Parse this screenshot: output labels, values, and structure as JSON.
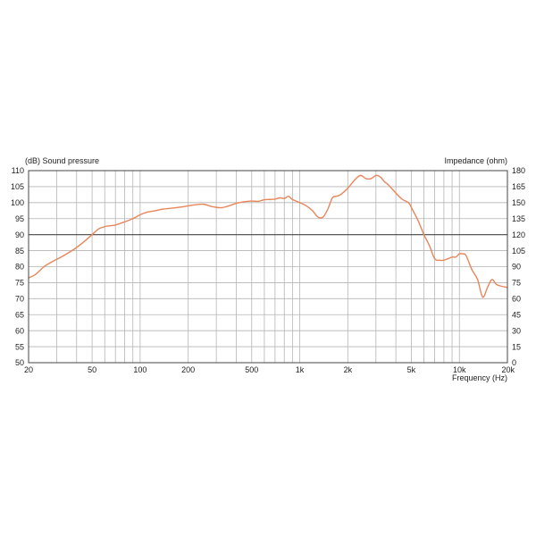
{
  "colors": {
    "curve": "#e8865a",
    "grid_minor": "#b5b5b5",
    "grid_major": "#444444",
    "frame": "#444444",
    "background": "#ffffff",
    "text": "#222222"
  },
  "chart_data": {
    "type": "line",
    "title": "",
    "xlabel": "Frequency  (Hz)",
    "ylabel_left": "(dB)  Sound pressure",
    "ylabel_right": "Impedance  (ohm)",
    "x_scale": "log",
    "xlim": [
      20,
      20000
    ],
    "ylim_left": [
      50,
      110
    ],
    "ylim_right": [
      0,
      180
    ],
    "grid": true,
    "reference_line_db": 90,
    "x_ticks": [
      {
        "value": 20,
        "label": "20"
      },
      {
        "value": 50,
        "label": "50"
      },
      {
        "value": 100,
        "label": "100"
      },
      {
        "value": 200,
        "label": "200"
      },
      {
        "value": 500,
        "label": "500"
      },
      {
        "value": 1000,
        "label": "1k"
      },
      {
        "value": 2000,
        "label": "2k"
      },
      {
        "value": 5000,
        "label": "5k"
      },
      {
        "value": 10000,
        "label": "10k"
      },
      {
        "value": 20000,
        "label": "20k"
      }
    ],
    "y_ticks_left": [
      "110",
      "105",
      "100",
      "95",
      "90",
      "85",
      "80",
      "75",
      "70",
      "65",
      "60",
      "55",
      "50"
    ],
    "y_ticks_right": [
      "180",
      "165",
      "150",
      "135",
      "120",
      "105",
      "90",
      "75",
      "60",
      "45",
      "30",
      "15",
      "0"
    ],
    "series": [
      {
        "type": "sound_pressure",
        "x": [
          20,
          22,
          25,
          28,
          32,
          36,
          40,
          45,
          50,
          55,
          60,
          65,
          70,
          80,
          90,
          100,
          110,
          125,
          140,
          160,
          180,
          200,
          220,
          250,
          280,
          320,
          360,
          400,
          450,
          500,
          550,
          600,
          650,
          700,
          750,
          800,
          850,
          900,
          1000,
          1100,
          1200,
          1300,
          1400,
          1500,
          1600,
          1700,
          1800,
          2000,
          2200,
          2400,
          2600,
          2800,
          3000,
          3200,
          3400,
          3600,
          4000,
          4400,
          4800,
          5000,
          5500,
          6000,
          6500,
          7000,
          7500,
          8000,
          8500,
          9000,
          9500,
          10000,
          10500,
          11000,
          12000,
          13000,
          14000,
          15000,
          16000,
          17000,
          18000,
          20000
        ],
        "values": [
          76.5,
          77.5,
          80.0,
          81.5,
          83.0,
          84.5,
          86.0,
          88.0,
          90.0,
          91.8,
          92.5,
          92.8,
          93.0,
          94.0,
          95.0,
          96.2,
          97.0,
          97.5,
          98.0,
          98.3,
          98.6,
          99.0,
          99.3,
          99.5,
          98.8,
          98.4,
          99.0,
          99.8,
          100.3,
          100.5,
          100.4,
          100.9,
          101.0,
          101.1,
          101.5,
          101.3,
          102.0,
          101.0,
          100.0,
          99.0,
          97.5,
          95.5,
          95.5,
          98.0,
          101.5,
          102.0,
          102.5,
          104.5,
          107.0,
          108.5,
          107.5,
          107.5,
          108.5,
          108.0,
          106.5,
          105.5,
          103.0,
          101.0,
          100.0,
          98.5,
          94.5,
          90.0,
          86.5,
          82.5,
          82.0,
          82.0,
          82.5,
          83.0,
          83.0,
          84.0,
          84.0,
          83.5,
          79.0,
          76.0,
          70.5,
          73.5,
          76.0,
          74.5,
          74.0,
          73.5
        ]
      }
    ]
  }
}
